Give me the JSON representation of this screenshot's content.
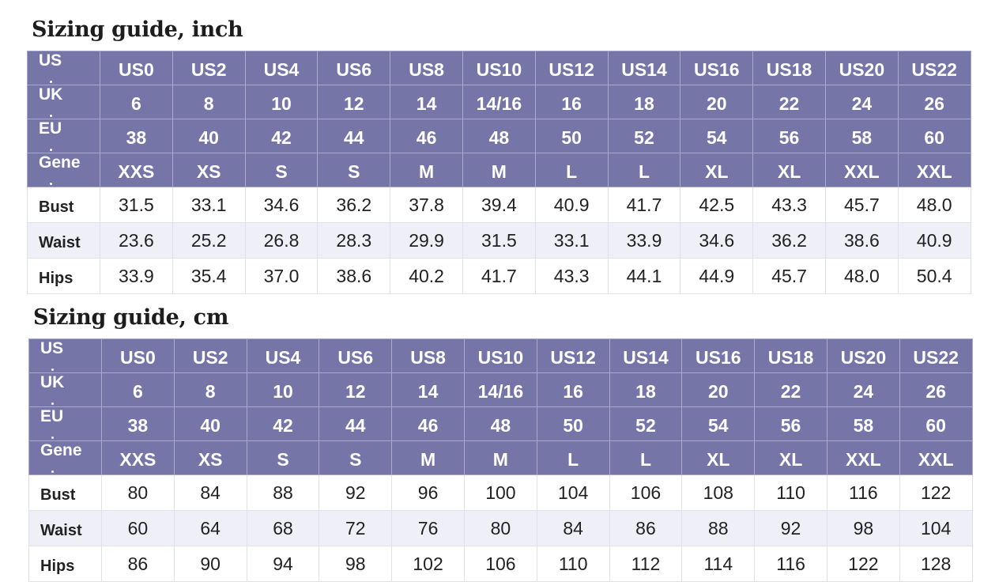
{
  "tables": [
    {
      "title": "Sizing guide, inch",
      "header_rows": [
        {
          "label": "US",
          "values": [
            "US0",
            "US2",
            "US4",
            "US6",
            "US8",
            "US10",
            "US12",
            "US14",
            "US16",
            "US18",
            "US20",
            "US22"
          ]
        },
        {
          "label": "UK",
          "values": [
            "6",
            "8",
            "10",
            "12",
            "14",
            "14/16",
            "16",
            "18",
            "20",
            "22",
            "24",
            "26"
          ]
        },
        {
          "label": "EU",
          "values": [
            "38",
            "40",
            "42",
            "44",
            "46",
            "48",
            "50",
            "52",
            "54",
            "56",
            "58",
            "60"
          ]
        },
        {
          "label": "Gene",
          "values": [
            "XXS",
            "XS",
            "S",
            "S",
            "M",
            "M",
            "L",
            "L",
            "XL",
            "XL",
            "XXL",
            "XXL"
          ]
        }
      ],
      "measure_rows": [
        {
          "label": "Bust",
          "values": [
            "31.5",
            "33.1",
            "34.6",
            "36.2",
            "37.8",
            "39.4",
            "40.9",
            "41.7",
            "42.5",
            "43.3",
            "45.7",
            "48.0"
          ]
        },
        {
          "label": "Waist",
          "values": [
            "23.6",
            "25.2",
            "26.8",
            "28.3",
            "29.9",
            "31.5",
            "33.1",
            "33.9",
            "34.6",
            "36.2",
            "38.6",
            "40.9"
          ]
        },
        {
          "label": "Hips",
          "values": [
            "33.9",
            "35.4",
            "37.0",
            "38.6",
            "40.2",
            "41.7",
            "43.3",
            "44.1",
            "44.9",
            "45.7",
            "48.0",
            "50.4"
          ]
        }
      ]
    },
    {
      "title": "Sizing guide, cm",
      "header_rows": [
        {
          "label": "US",
          "values": [
            "US0",
            "US2",
            "US4",
            "US6",
            "US8",
            "US10",
            "US12",
            "US14",
            "US16",
            "US18",
            "US20",
            "US22"
          ]
        },
        {
          "label": "UK",
          "values": [
            "6",
            "8",
            "10",
            "12",
            "14",
            "14/16",
            "16",
            "18",
            "20",
            "22",
            "24",
            "26"
          ]
        },
        {
          "label": "EU",
          "values": [
            "38",
            "40",
            "42",
            "44",
            "46",
            "48",
            "50",
            "52",
            "54",
            "56",
            "58",
            "60"
          ]
        },
        {
          "label": "Gene",
          "values": [
            "XXS",
            "XS",
            "S",
            "S",
            "M",
            "M",
            "L",
            "L",
            "XL",
            "XL",
            "XXL",
            "XXL"
          ]
        }
      ],
      "measure_rows": [
        {
          "label": "Bust",
          "values": [
            "80",
            "84",
            "88",
            "92",
            "96",
            "100",
            "104",
            "106",
            "108",
            "110",
            "116",
            "122"
          ]
        },
        {
          "label": "Waist",
          "values": [
            "60",
            "64",
            "68",
            "72",
            "76",
            "80",
            "84",
            "86",
            "88",
            "92",
            "98",
            "104"
          ]
        },
        {
          "label": "Hips",
          "values": [
            "86",
            "90",
            "94",
            "98",
            "102",
            "106",
            "110",
            "112",
            "114",
            "116",
            "122",
            "128"
          ]
        }
      ]
    }
  ],
  "colors": {
    "header_bg": "#7575a8",
    "alt_row_bg": "#efeff8"
  }
}
